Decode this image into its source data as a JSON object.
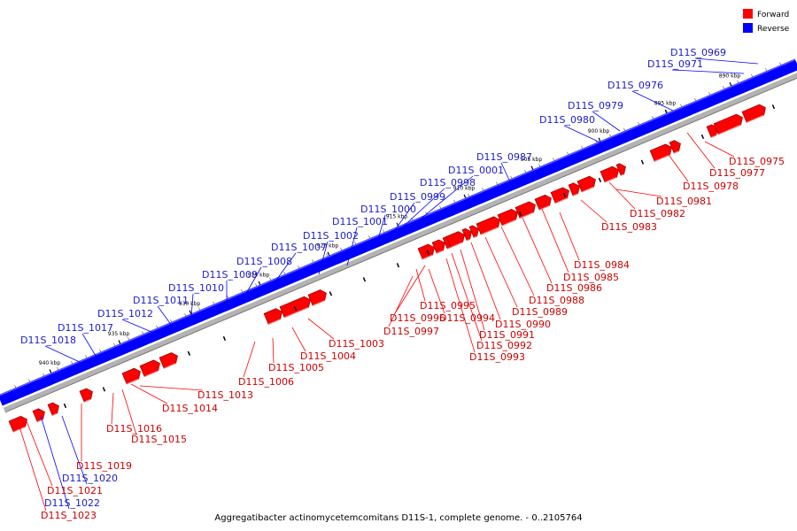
{
  "caption": "Aggregatibacter actinomycetemcomitans D11S-1, complete genome. - 0..2105764",
  "legend": {
    "forward": {
      "label": "Forward",
      "color": "#ff0000"
    },
    "reverse": {
      "label": "Reverse",
      "color": "#0000ff"
    }
  },
  "colors": {
    "forward": "#ff0000",
    "forward_label": "#cc0000",
    "reverse": "#0000ff",
    "reverse_label": "#1a1acc",
    "axis": "#b3b3b3",
    "tick": "#000000"
  },
  "scale_labels": [
    "890 kbp",
    "895 kbp",
    "900 kbp",
    "905 kbp",
    "910 kbp",
    "915 kbp",
    "920 kbp",
    "925 kbp",
    "930 kbp",
    "935 kbp",
    "940 kbp"
  ],
  "reverse_genes": [
    "D11S_0969",
    "D11S_0971",
    "D11S_0976",
    "D11S_0979",
    "D11S_0980",
    "D11S_0987",
    "D11S_0001",
    "D11S_0998",
    "D11S_0999",
    "D11S_1000",
    "D11S_1001",
    "D11S_1002",
    "D11S_1007",
    "D11S_1008",
    "D11S_1009",
    "D11S_1010",
    "D11S_1011",
    "D11S_1012",
    "D11S_1017",
    "D11S_1018",
    "D11S_1020",
    "D11S_1022"
  ],
  "forward_genes": [
    "D11S_0975",
    "D11S_0977",
    "D11S_0978",
    "D11S_0981",
    "D11S_0982",
    "D11S_0983",
    "D11S_0984",
    "D11S_0985",
    "D11S_0986",
    "D11S_0988",
    "D11S_0989",
    "D11S_0990",
    "D11S_0991",
    "D11S_0992",
    "D11S_0993",
    "D11S_0994",
    "D11S_0995",
    "D11S_0996",
    "D11S_0997",
    "D11S_1003",
    "D11S_1004",
    "D11S_1005",
    "D11S_1006",
    "D11S_1013",
    "D11S_1014",
    "D11S_1015",
    "D11S_1016",
    "D11S_1019",
    "D11S_1021",
    "D11S_1023"
  ]
}
